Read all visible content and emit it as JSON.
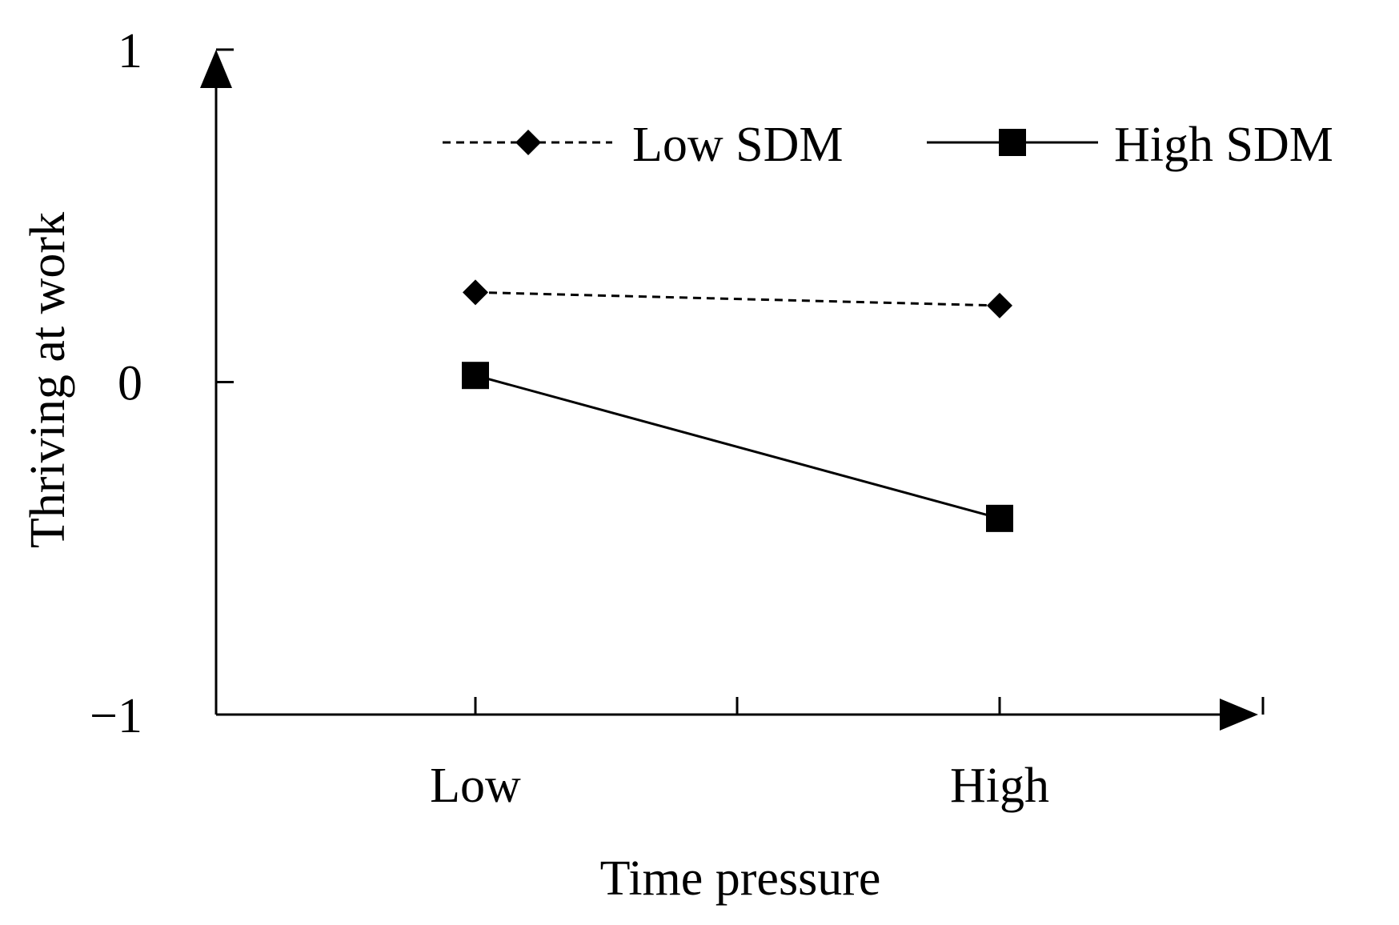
{
  "chart_data": {
    "type": "line",
    "title": "",
    "xlabel": "Time pressure",
    "ylabel": "Thriving at work",
    "categories": [
      "Low",
      "High"
    ],
    "ylim": [
      -1,
      1
    ],
    "yticks": [
      "1",
      "0",
      "−1"
    ],
    "yticks_values": [
      1,
      0,
      -1
    ],
    "grid": false,
    "legend_position": "top-right",
    "series": [
      {
        "name": "Low SDM",
        "values": [
          0.27,
          0.23
        ],
        "line": "dashed",
        "marker": "diamond"
      },
      {
        "name": "High SDM",
        "values": [
          0.02,
          -0.41
        ],
        "line": "solid",
        "marker": "square"
      }
    ]
  }
}
